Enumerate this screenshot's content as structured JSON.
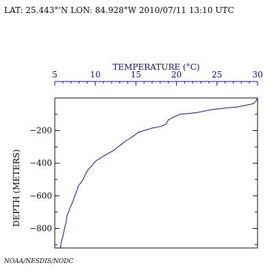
{
  "header": {
    "text": "LAT: 25.443°'N LON: 84.928°W 2010/07/11 13:10 UTC"
  },
  "footer": {
    "text": "NOAA/NESDIS/NODC"
  },
  "colors": {
    "axis_top": "#0000cc",
    "series": "#0000cc",
    "axis_main": "#000000"
  },
  "chart_data": {
    "type": "line",
    "title": "",
    "xlabel": "TEMPERATURE (°C)",
    "ylabel": "DEPTH (METERS)",
    "x_axis_position": "top",
    "xlim": [
      5,
      30
    ],
    "ylim": [
      -920,
      0
    ],
    "x_ticks": [
      5,
      10,
      15,
      20,
      25,
      30
    ],
    "x_tick_labels": [
      "5",
      "10",
      "15",
      "20",
      "25",
      "30"
    ],
    "y_ticks": [
      -200,
      -400,
      -600,
      -800
    ],
    "y_tick_labels": [
      "−200",
      "−400",
      "−600",
      "−800"
    ],
    "grid": false,
    "legend": "none",
    "series": [
      {
        "x": [
          30.0,
          29.8,
          29.5,
          29.0,
          28.5,
          27.5,
          26.5,
          25.5,
          24.5,
          23.5,
          22.5,
          21.5,
          20.5,
          20.0,
          19.5,
          19.0,
          18.7,
          18.3,
          18.0,
          17.0,
          16.0,
          15.3,
          14.8,
          14.2,
          13.7,
          13.2,
          12.8,
          12.3,
          11.8,
          11.2,
          10.6,
          10.1,
          9.8,
          9.5,
          9.1,
          8.8,
          8.5,
          8.2,
          7.9,
          7.7,
          7.4,
          7.2,
          6.9,
          6.7,
          6.5,
          6.4,
          6.2,
          6.0,
          5.8,
          5.7
        ],
        "y": [
          0,
          -20,
          -35,
          -40,
          -45,
          -55,
          -60,
          -65,
          -70,
          -80,
          -90,
          -95,
          -100,
          -110,
          -120,
          -135,
          -160,
          -170,
          -175,
          -185,
          -200,
          -210,
          -230,
          -250,
          -265,
          -285,
          -300,
          -320,
          -335,
          -350,
          -370,
          -385,
          -400,
          -420,
          -440,
          -465,
          -500,
          -520,
          -540,
          -570,
          -610,
          -640,
          -670,
          -700,
          -720,
          -760,
          -800,
          -850,
          -880,
          -920
        ]
      }
    ]
  }
}
